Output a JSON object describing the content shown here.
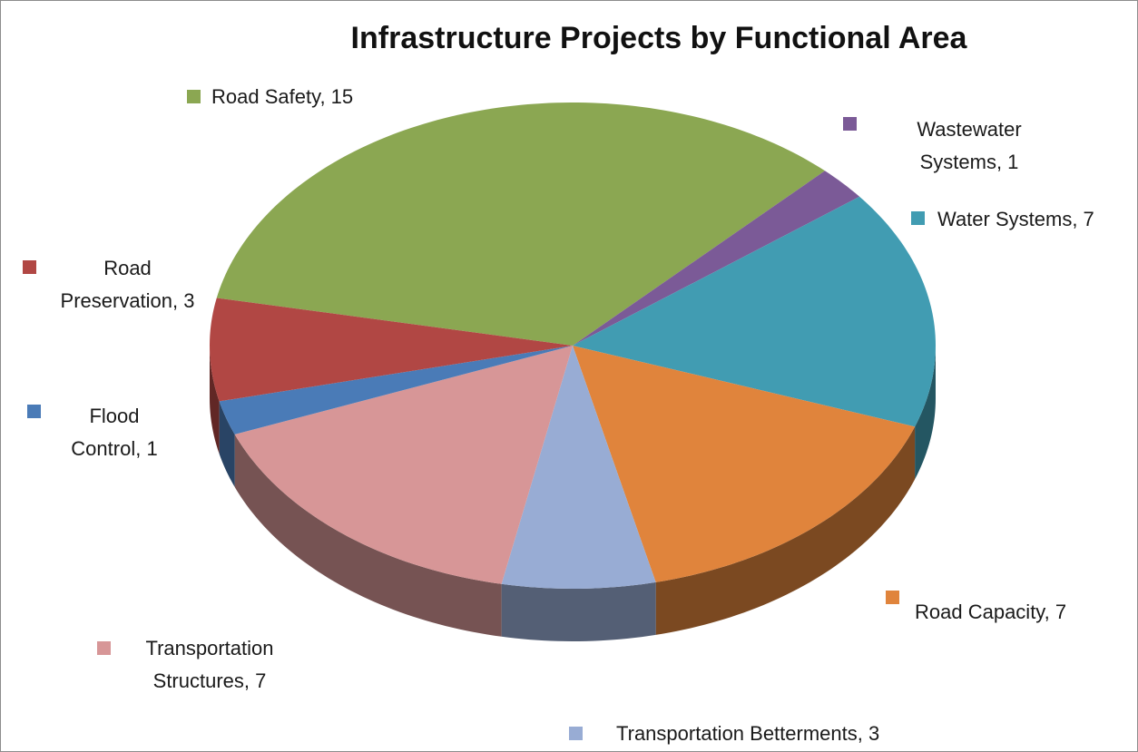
{
  "chart_data": {
    "type": "pie",
    "title": "Infrastructure Projects by Functional Area",
    "values": [
      15,
      1,
      7,
      7,
      3,
      7,
      1,
      3
    ],
    "value_labels": [
      "Road Safety, 15",
      "Wastewater Systems, 1",
      "Water Systems, 7",
      "Road Capacity, 7",
      "Transportation Betterments, 3",
      "Transportation Structures, 7",
      "Flood Control, 1",
      "Road Preservation, 3"
    ],
    "colors": [
      "#8ba752",
      "#7b5a97",
      "#419cb2",
      "#e0843c",
      "#98acd4",
      "#d79697",
      "#4a7bb7",
      "#b14744"
    ],
    "style_3d": true
  }
}
